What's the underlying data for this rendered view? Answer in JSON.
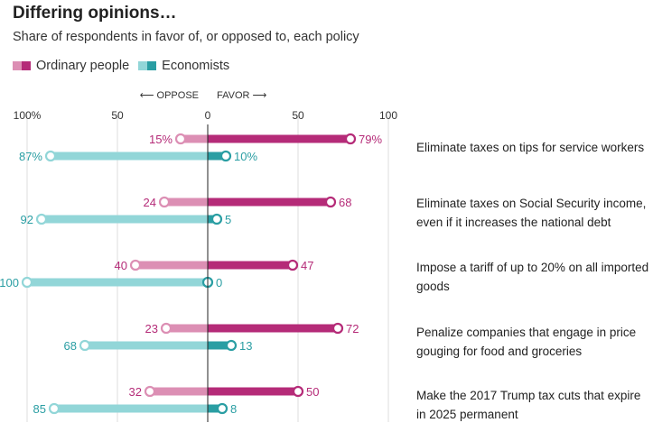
{
  "chart_data": {
    "type": "bar",
    "title": "Differing opinions…",
    "subtitle": "Share of respondents in favor of, or opposed to, each policy",
    "direction_labels": {
      "oppose": "⟵ OPPOSE",
      "favor": "FAVOR ⟶"
    },
    "xlim": [
      -100,
      100
    ],
    "ticks": [
      {
        "value": -100,
        "label": "100%"
      },
      {
        "value": -50,
        "label": "50"
      },
      {
        "value": 0,
        "label": "0"
      },
      {
        "value": 50,
        "label": "50"
      },
      {
        "value": 100,
        "label": "100"
      }
    ],
    "series": [
      {
        "name": "Ordinary people",
        "key": "ordinary",
        "color_oppose": "#dc8fb4",
        "color_favor": "#b52b78"
      },
      {
        "name": "Economists",
        "key": "economists",
        "color_oppose": "#92d6d8",
        "color_favor": "#2a9ea3"
      }
    ],
    "categories": [
      {
        "label": "Eliminate taxes on tips for service workers",
        "ordinary": {
          "oppose": 15,
          "favor": 79,
          "oppose_label": "15%",
          "favor_label": "79%"
        },
        "economists": {
          "oppose": 87,
          "favor": 10,
          "oppose_label": "87%",
          "favor_label": "10%"
        }
      },
      {
        "label": "Eliminate taxes on Social Security income, even if it increases the national debt",
        "ordinary": {
          "oppose": 24,
          "favor": 68,
          "oppose_label": "24",
          "favor_label": "68"
        },
        "economists": {
          "oppose": 92,
          "favor": 5,
          "oppose_label": "92",
          "favor_label": "5"
        }
      },
      {
        "label": "Impose a tariff of up to 20% on all imported goods",
        "ordinary": {
          "oppose": 40,
          "favor": 47,
          "oppose_label": "40",
          "favor_label": "47"
        },
        "economists": {
          "oppose": 100,
          "favor": 0,
          "oppose_label": "100",
          "favor_label": "0"
        }
      },
      {
        "label": "Penalize companies that engage in price gouging for food and groceries",
        "ordinary": {
          "oppose": 23,
          "favor": 72,
          "oppose_label": "23",
          "favor_label": "72"
        },
        "economists": {
          "oppose": 68,
          "favor": 13,
          "oppose_label": "68",
          "favor_label": "13"
        }
      },
      {
        "label": "Make the 2017 Trump tax cuts that expire in 2025 permanent",
        "ordinary": {
          "oppose": 32,
          "favor": 50,
          "oppose_label": "32",
          "favor_label": "50"
        },
        "economists": {
          "oppose": 85,
          "favor": 8,
          "oppose_label": "85",
          "favor_label": "8"
        }
      }
    ]
  }
}
